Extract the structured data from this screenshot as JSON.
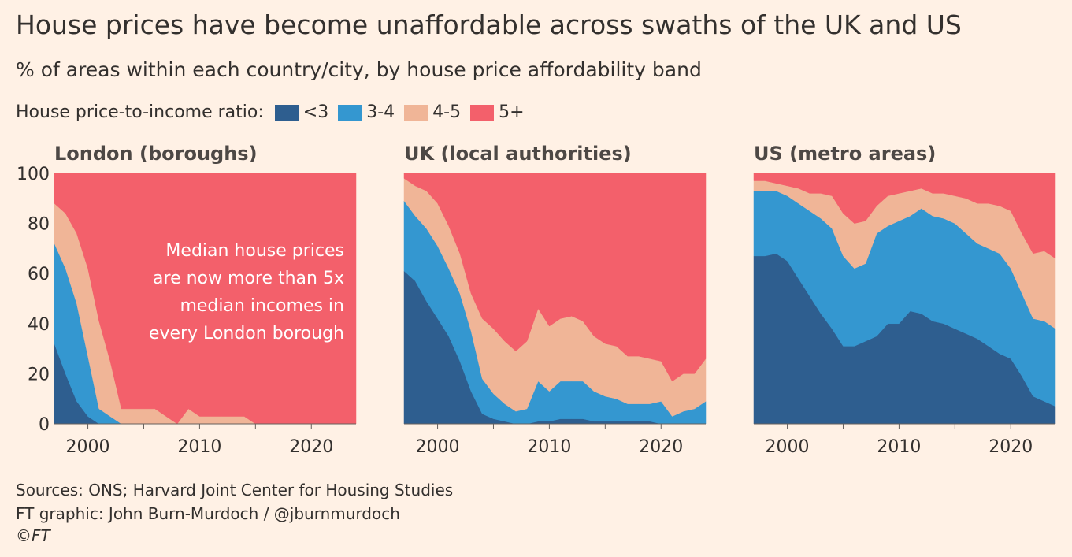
{
  "title": "House prices have become unaffordable across swaths of the UK and US",
  "subtitle": "% of areas within each country/city, by house price affordability band",
  "legend": {
    "label": "House price-to-income ratio:",
    "items": [
      {
        "name": "<3",
        "color": "#2e5e8f"
      },
      {
        "name": "3-4",
        "color": "#3497d0"
      },
      {
        "name": "4-5",
        "color": "#f0b597"
      },
      {
        "name": "5+",
        "color": "#f3606b"
      }
    ]
  },
  "footer": {
    "sources": "Sources: ONS; Harvard Joint Center for Housing Studies",
    "graphic": "FT graphic: John Burn-Murdoch / @jburnmurdoch",
    "copyright": "©FT"
  },
  "chart_data": [
    {
      "type": "area",
      "stacked": true,
      "title": "London (boroughs)",
      "x": [
        1997,
        1998,
        1999,
        2000,
        2001,
        2002,
        2003,
        2004,
        2005,
        2006,
        2007,
        2008,
        2009,
        2010,
        2011,
        2012,
        2013,
        2014,
        2015,
        2016,
        2017,
        2018,
        2019,
        2020,
        2021,
        2022,
        2023,
        2024
      ],
      "series": [
        {
          "name": "<3",
          "values": [
            32,
            20,
            9,
            3,
            0,
            0,
            0,
            0,
            0,
            0,
            0,
            0,
            0,
            0,
            0,
            0,
            0,
            0,
            0,
            0,
            0,
            0,
            0,
            0,
            0,
            0,
            0,
            0
          ]
        },
        {
          "name": "3-4",
          "values": [
            40,
            42,
            39,
            24,
            6,
            3,
            0,
            0,
            0,
            0,
            0,
            0,
            0,
            0,
            0,
            0,
            0,
            0,
            0,
            0,
            0,
            0,
            0,
            0,
            0,
            0,
            0,
            0
          ]
        },
        {
          "name": "4-5",
          "values": [
            16,
            22,
            28,
            35,
            35,
            22,
            6,
            6,
            6,
            6,
            3,
            0,
            6,
            3,
            3,
            3,
            3,
            3,
            0,
            0,
            0,
            0,
            0,
            0,
            0,
            0,
            0,
            0
          ]
        },
        {
          "name": "5+",
          "values": [
            12,
            16,
            24,
            38,
            59,
            75,
            94,
            94,
            94,
            94,
            97,
            100,
            94,
            97,
            97,
            97,
            97,
            97,
            100,
            100,
            100,
            100,
            100,
            100,
            100,
            100,
            100,
            100
          ]
        }
      ],
      "annotation": [
        "Median house prices",
        "are now more than 5x",
        "median incomes in",
        "every London borough"
      ],
      "ylim": [
        0,
        100
      ],
      "yticks": [
        0,
        20,
        40,
        60,
        80,
        100
      ],
      "xticks": [
        2000,
        2010,
        2020
      ],
      "xlim": [
        1997,
        2024
      ]
    },
    {
      "type": "area",
      "stacked": true,
      "title": "UK (local authorities)",
      "x": [
        1997,
        1998,
        1999,
        2000,
        2001,
        2002,
        2003,
        2004,
        2005,
        2006,
        2007,
        2008,
        2009,
        2010,
        2011,
        2012,
        2013,
        2014,
        2015,
        2016,
        2017,
        2018,
        2019,
        2020,
        2021,
        2022,
        2023,
        2024
      ],
      "series": [
        {
          "name": "<3",
          "values": [
            61,
            57,
            49,
            42,
            35,
            25,
            13,
            4,
            2,
            1,
            0,
            0,
            1,
            1,
            2,
            2,
            2,
            1,
            1,
            1,
            1,
            1,
            1,
            0,
            0,
            0,
            0,
            0
          ]
        },
        {
          "name": "3-4",
          "values": [
            28,
            26,
            29,
            29,
            27,
            27,
            24,
            14,
            10,
            7,
            5,
            6,
            16,
            12,
            15,
            15,
            15,
            12,
            10,
            9,
            7,
            7,
            7,
            9,
            3,
            5,
            6,
            9
          ]
        },
        {
          "name": "4-5",
          "values": [
            9,
            12,
            15,
            17,
            17,
            16,
            15,
            24,
            26,
            25,
            24,
            27,
            29,
            26,
            25,
            26,
            24,
            22,
            21,
            21,
            19,
            19,
            18,
            16,
            14,
            15,
            14,
            17
          ]
        },
        {
          "name": "5+",
          "values": [
            2,
            5,
            7,
            12,
            21,
            32,
            48,
            58,
            62,
            67,
            71,
            67,
            54,
            61,
            58,
            57,
            59,
            65,
            68,
            69,
            73,
            73,
            74,
            75,
            83,
            80,
            80,
            74
          ]
        }
      ],
      "ylim": [
        0,
        100
      ],
      "xticks": [
        2000,
        2010,
        2020
      ],
      "xlim": [
        1997,
        2024
      ]
    },
    {
      "type": "area",
      "stacked": true,
      "title": "US (metro areas)",
      "x": [
        1997,
        1998,
        1999,
        2000,
        2001,
        2002,
        2003,
        2004,
        2005,
        2006,
        2007,
        2008,
        2009,
        2010,
        2011,
        2012,
        2013,
        2014,
        2015,
        2016,
        2017,
        2018,
        2019,
        2020,
        2021,
        2022,
        2023,
        2024
      ],
      "series": [
        {
          "name": "<3",
          "values": [
            67,
            67,
            68,
            65,
            58,
            51,
            44,
            38,
            31,
            31,
            33,
            35,
            40,
            40,
            45,
            44,
            41,
            40,
            38,
            36,
            34,
            31,
            28,
            26,
            19,
            11,
            9,
            7
          ]
        },
        {
          "name": "3-4",
          "values": [
            26,
            26,
            25,
            26,
            30,
            34,
            38,
            40,
            36,
            31,
            31,
            41,
            39,
            41,
            38,
            42,
            42,
            42,
            42,
            40,
            38,
            39,
            40,
            36,
            33,
            31,
            32,
            31
          ]
        },
        {
          "name": "4-5",
          "values": [
            4,
            4,
            3,
            4,
            6,
            7,
            10,
            13,
            17,
            18,
            17,
            11,
            12,
            11,
            10,
            8,
            9,
            10,
            11,
            14,
            16,
            18,
            19,
            23,
            24,
            26,
            28,
            28
          ]
        },
        {
          "name": "5+",
          "values": [
            3,
            3,
            4,
            5,
            6,
            8,
            8,
            9,
            16,
            20,
            19,
            13,
            9,
            8,
            7,
            6,
            8,
            8,
            9,
            10,
            12,
            12,
            13,
            15,
            24,
            32,
            31,
            34
          ]
        }
      ],
      "ylim": [
        0,
        100
      ],
      "xticks": [
        2000,
        2010,
        2020
      ],
      "xlim": [
        1997,
        2024
      ]
    }
  ]
}
